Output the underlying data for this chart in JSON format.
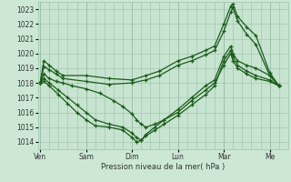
{
  "title": "",
  "xlabel": "Pression niveau de la mer( hPa )",
  "bg_color": "#cce8d4",
  "plot_bg_color": "#cce8d4",
  "grid_color": "#9abfaa",
  "line_color": "#1a5c1a",
  "ylim": [
    1013.5,
    1023.5
  ],
  "yticks": [
    1014,
    1015,
    1016,
    1017,
    1018,
    1019,
    1020,
    1021,
    1022,
    1023
  ],
  "day_labels": [
    "Ven",
    "Sam",
    "Dim",
    "Lun",
    "Mar",
    "Me"
  ],
  "day_positions": [
    0,
    1,
    2,
    3,
    4,
    5
  ],
  "n_days": 6,
  "series": [
    {
      "points": [
        [
          0,
          1018.0
        ],
        [
          0.08,
          1019.5
        ],
        [
          0.2,
          1019.2
        ],
        [
          0.35,
          1018.8
        ],
        [
          0.5,
          1018.5
        ],
        [
          1.0,
          1018.5
        ],
        [
          1.5,
          1018.3
        ],
        [
          2.0,
          1018.2
        ],
        [
          2.3,
          1018.5
        ],
        [
          2.6,
          1018.8
        ],
        [
          3.0,
          1019.5
        ],
        [
          3.3,
          1019.8
        ],
        [
          3.6,
          1020.2
        ],
        [
          3.8,
          1020.5
        ],
        [
          4.0,
          1022.0
        ],
        [
          4.15,
          1023.2
        ],
        [
          4.2,
          1023.35
        ],
        [
          4.3,
          1022.5
        ],
        [
          4.5,
          1021.8
        ],
        [
          4.7,
          1021.2
        ],
        [
          5.0,
          1018.7
        ],
        [
          5.2,
          1017.8
        ]
      ]
    },
    {
      "points": [
        [
          0,
          1018.0
        ],
        [
          0.08,
          1019.1
        ],
        [
          0.2,
          1018.9
        ],
        [
          0.35,
          1018.6
        ],
        [
          0.5,
          1018.3
        ],
        [
          1.0,
          1018.1
        ],
        [
          1.5,
          1017.9
        ],
        [
          2.0,
          1018.0
        ],
        [
          2.3,
          1018.2
        ],
        [
          2.6,
          1018.5
        ],
        [
          3.0,
          1019.2
        ],
        [
          3.3,
          1019.5
        ],
        [
          3.6,
          1019.9
        ],
        [
          3.8,
          1020.2
        ],
        [
          4.0,
          1021.5
        ],
        [
          4.15,
          1022.8
        ],
        [
          4.2,
          1023.1
        ],
        [
          4.3,
          1022.2
        ],
        [
          4.5,
          1021.3
        ],
        [
          4.7,
          1020.6
        ],
        [
          5.0,
          1018.5
        ],
        [
          5.2,
          1017.8
        ]
      ]
    },
    {
      "points": [
        [
          0,
          1018.0
        ],
        [
          0.08,
          1018.6
        ],
        [
          0.2,
          1018.3
        ],
        [
          0.35,
          1018.1
        ],
        [
          0.5,
          1018.0
        ],
        [
          0.7,
          1017.8
        ],
        [
          1.0,
          1017.6
        ],
        [
          1.3,
          1017.3
        ],
        [
          1.6,
          1016.8
        ],
        [
          1.8,
          1016.4
        ],
        [
          2.0,
          1015.9
        ],
        [
          2.1,
          1015.5
        ],
        [
          2.2,
          1015.2
        ],
        [
          2.3,
          1015.0
        ],
        [
          2.5,
          1015.2
        ],
        [
          2.7,
          1015.5
        ],
        [
          3.0,
          1016.2
        ],
        [
          3.3,
          1017.0
        ],
        [
          3.6,
          1017.8
        ],
        [
          3.8,
          1018.2
        ],
        [
          4.0,
          1019.8
        ],
        [
          4.15,
          1020.5
        ],
        [
          4.2,
          1020.0
        ],
        [
          4.3,
          1019.5
        ],
        [
          4.5,
          1019.2
        ],
        [
          4.7,
          1019.0
        ],
        [
          5.0,
          1018.5
        ],
        [
          5.2,
          1017.8
        ]
      ]
    },
    {
      "points": [
        [
          0,
          1018.0
        ],
        [
          0.08,
          1018.3
        ],
        [
          0.2,
          1018.0
        ],
        [
          0.4,
          1017.5
        ],
        [
          0.6,
          1017.0
        ],
        [
          0.8,
          1016.5
        ],
        [
          1.0,
          1016.0
        ],
        [
          1.2,
          1015.5
        ],
        [
          1.5,
          1015.2
        ],
        [
          1.8,
          1015.0
        ],
        [
          2.0,
          1014.6
        ],
        [
          2.1,
          1014.3
        ],
        [
          2.2,
          1014.1
        ],
        [
          2.3,
          1014.4
        ],
        [
          2.5,
          1014.8
        ],
        [
          2.7,
          1015.2
        ],
        [
          3.0,
          1015.8
        ],
        [
          3.3,
          1016.5
        ],
        [
          3.6,
          1017.2
        ],
        [
          3.8,
          1017.8
        ],
        [
          4.0,
          1019.5
        ],
        [
          4.15,
          1020.2
        ],
        [
          4.2,
          1019.8
        ],
        [
          4.3,
          1019.2
        ],
        [
          4.5,
          1018.8
        ],
        [
          4.7,
          1018.5
        ],
        [
          5.0,
          1018.2
        ],
        [
          5.2,
          1017.8
        ]
      ]
    },
    {
      "points": [
        [
          0,
          1018.0
        ],
        [
          0.08,
          1018.1
        ],
        [
          0.2,
          1017.8
        ],
        [
          0.4,
          1017.2
        ],
        [
          0.6,
          1016.6
        ],
        [
          0.8,
          1016.0
        ],
        [
          1.0,
          1015.5
        ],
        [
          1.2,
          1015.1
        ],
        [
          1.5,
          1015.0
        ],
        [
          1.8,
          1014.8
        ],
        [
          2.0,
          1014.3
        ],
        [
          2.1,
          1014.0
        ],
        [
          2.2,
          1014.1
        ],
        [
          2.3,
          1014.5
        ],
        [
          2.5,
          1015.0
        ],
        [
          2.7,
          1015.5
        ],
        [
          3.0,
          1016.0
        ],
        [
          3.3,
          1016.8
        ],
        [
          3.6,
          1017.5
        ],
        [
          3.8,
          1018.0
        ],
        [
          4.0,
          1019.2
        ],
        [
          4.15,
          1020.0
        ],
        [
          4.2,
          1019.5
        ],
        [
          4.3,
          1019.0
        ],
        [
          4.5,
          1018.6
        ],
        [
          4.7,
          1018.3
        ],
        [
          5.0,
          1018.1
        ],
        [
          5.2,
          1017.8
        ]
      ]
    }
  ]
}
